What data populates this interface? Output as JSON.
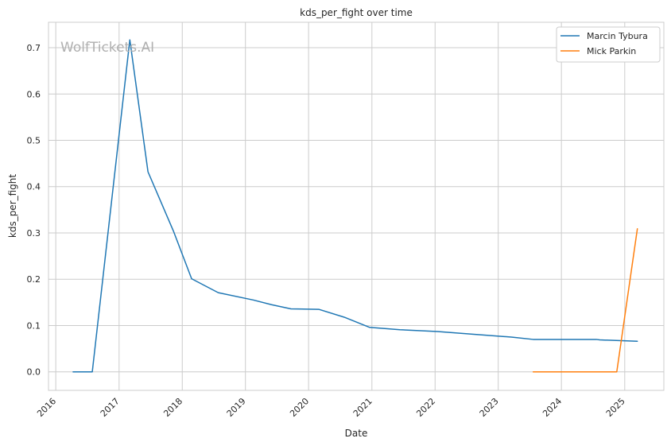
{
  "chart_data": {
    "type": "line",
    "title": "kds_per_fight over time",
    "xlabel": "Date",
    "ylabel": "kds_per_fight",
    "watermark": "WolfTickets.AI",
    "x_ticks": [
      "2016",
      "2017",
      "2018",
      "2019",
      "2020",
      "2021",
      "2022",
      "2023",
      "2024",
      "2025"
    ],
    "y_ticks": [
      "0.0",
      "0.1",
      "0.2",
      "0.3",
      "0.4",
      "0.5",
      "0.6",
      "0.7"
    ],
    "xlim": [
      "2015-11-20",
      "2025-08-15"
    ],
    "ylim": [
      -0.04,
      0.755
    ],
    "grid": true,
    "legend_position": "top-right",
    "series": [
      {
        "name": "Marcin Tybura",
        "color": "#1f77b4",
        "points": [
          [
            "2016-04-10",
            0.0
          ],
          [
            "2016-07-30",
            0.0
          ],
          [
            "2017-03-04",
            0.717
          ],
          [
            "2017-06-17",
            0.432
          ],
          [
            "2017-11-11",
            0.304
          ],
          [
            "2018-02-24",
            0.201
          ],
          [
            "2018-07-28",
            0.171
          ],
          [
            "2019-02-17",
            0.155
          ],
          [
            "2019-06-01",
            0.145
          ],
          [
            "2019-09-21",
            0.136
          ],
          [
            "2020-02-29",
            0.135
          ],
          [
            "2020-07-25",
            0.118
          ],
          [
            "2020-12-19",
            0.096
          ],
          [
            "2021-06-12",
            0.091
          ],
          [
            "2022-01-15",
            0.087
          ],
          [
            "2022-08-13",
            0.081
          ],
          [
            "2023-03-18",
            0.075
          ],
          [
            "2023-07-22",
            0.07
          ],
          [
            "2024-06-01",
            0.07
          ],
          [
            "2024-07-20",
            0.07
          ],
          [
            "2024-08-10",
            0.069
          ],
          [
            "2025-03-15",
            0.066
          ]
        ]
      },
      {
        "name": "Mick Parkin",
        "color": "#ff7f0e",
        "points": [
          [
            "2023-07-22",
            0.0
          ],
          [
            "2023-11-11",
            0.0
          ],
          [
            "2024-06-01",
            0.0
          ],
          [
            "2024-11-16",
            0.0
          ],
          [
            "2025-03-15",
            0.309
          ]
        ]
      }
    ]
  }
}
